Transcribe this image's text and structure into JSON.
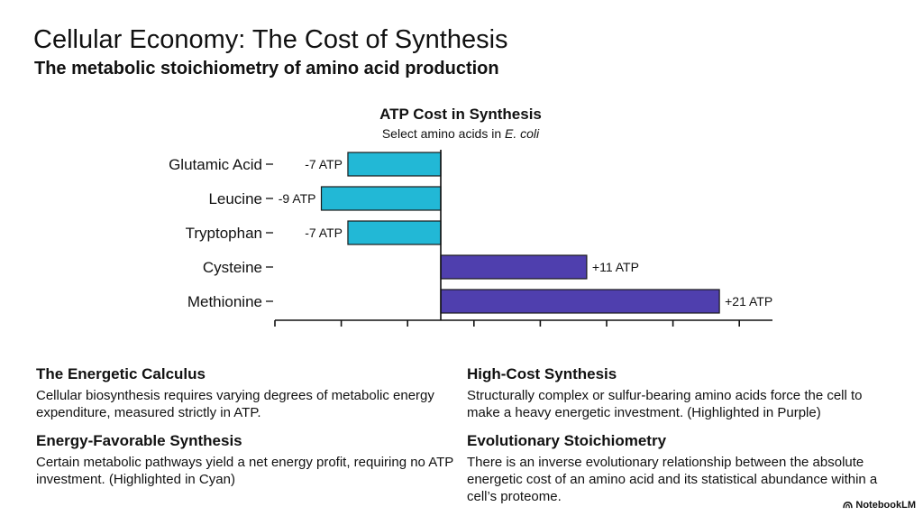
{
  "header": {
    "title": "Cellular Economy: The Cost of Synthesis",
    "subtitle": "The metabolic stoichiometry of amino acid production"
  },
  "chart_data": {
    "type": "bar",
    "orientation": "horizontal",
    "title": "ATP Cost in Synthesis",
    "subtitle_prefix": "Select amino acids in ",
    "subtitle_italic": "E. coli",
    "categories": [
      "Glutamic Acid",
      "Leucine",
      "Tryptophan",
      "Cysteine",
      "Methionine"
    ],
    "values": [
      -7,
      -9,
      -7,
      11,
      21
    ],
    "data_labels": [
      "-7 ATP",
      "-9 ATP",
      "-7 ATP",
      "+11 ATP",
      "+21 ATP"
    ],
    "xlim": [
      -12.5,
      25
    ],
    "x_ticks": [
      -12.5,
      -7.5,
      -2.5,
      2.5,
      7.5,
      12.5,
      17.5,
      22.5
    ],
    "colors": {
      "negative": "#22b8d6",
      "positive": "#4f3fae",
      "stroke": "#1a1a1a"
    },
    "grid": false,
    "legend": "none"
  },
  "sections": {
    "energetic_calculus": {
      "heading": "The Energetic Calculus",
      "body": "Cellular biosynthesis requires varying degrees of metabolic energy expenditure, measured strictly in ATP."
    },
    "energy_favorable": {
      "heading": "Energy-Favorable Synthesis",
      "body": "Certain metabolic pathways yield a net energy profit, requiring no ATP investment. (Highlighted in Cyan)"
    },
    "high_cost": {
      "heading": "High-Cost Synthesis",
      "body": "Structurally complex or sulfur-bearing amino acids force the cell to make a heavy energetic investment. (Highlighted in Purple)"
    },
    "evolutionary": {
      "heading": "Evolutionary Stoichiometry",
      "body": "There is an inverse evolutionary relationship between the absolute energetic cost of an amino acid and its statistical abundance within a cell’s proteome."
    }
  },
  "branding": {
    "label": "NotebookLM",
    "icon": "notebooklm-logo-icon"
  }
}
